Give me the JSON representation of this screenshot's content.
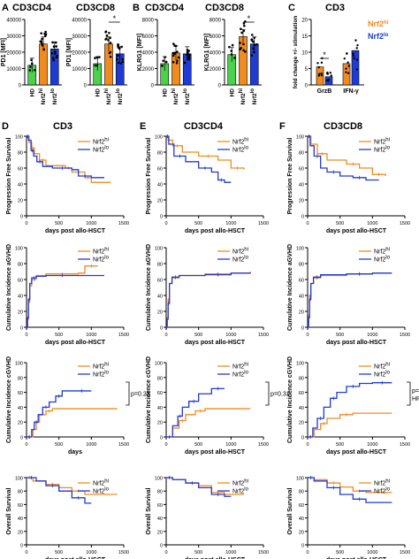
{
  "colors": {
    "hi": "#f28b1e",
    "lo": "#1f3bd6",
    "hd": "#4cd14c",
    "axis": "#000000"
  },
  "labels": {
    "hd": "HD",
    "hi": "Nrf2",
    "lo": "Nrf2",
    "sup_hi": "hi",
    "sup_lo": "lo",
    "star": "*"
  },
  "panels": {
    "A": {
      "letter": "A",
      "title": "CD3CD4",
      "title2": "CD3CD8"
    },
    "B": {
      "letter": "B",
      "title": "CD3CD4",
      "title2": "CD3CD8"
    },
    "C": {
      "letter": "C",
      "title": "CD3"
    },
    "D": {
      "letter": "D",
      "title": "CD3"
    },
    "E": {
      "letter": "E",
      "title": "CD3CD4"
    },
    "F": {
      "letter": "F",
      "title": "CD3CD8"
    }
  },
  "chart_data": [
    {
      "id": "A1",
      "type": "bar",
      "title": "CD3CD4",
      "ylabel": "PD1 [MFI]",
      "ylim": [
        0,
        40000
      ],
      "yticks": [
        "0",
        "10000",
        "20000",
        "30000",
        "40000"
      ],
      "categories": [
        "HD",
        "Nrf2hi",
        "Nrf2lo"
      ],
      "values": [
        12000,
        25000,
        22000
      ],
      "sig": false
    },
    {
      "id": "A2",
      "type": "bar",
      "title": "CD3CD8",
      "ylabel": "PD1 [MFI]",
      "ylim": [
        0,
        40000
      ],
      "yticks": [
        "0",
        "10000",
        "20000",
        "30000",
        "40000"
      ],
      "categories": [
        "HD",
        "Nrf2hi",
        "Nrf2lo"
      ],
      "values": [
        13000,
        25000,
        19000
      ],
      "sig": true
    },
    {
      "id": "B1",
      "type": "bar",
      "title": "CD3CD4",
      "ylabel": "KLRG1 [MFI]",
      "ylim": [
        0,
        8000
      ],
      "yticks": [
        "0",
        "2000",
        "4000",
        "6000",
        "8000"
      ],
      "categories": [
        "HD",
        "Nrf2hi",
        "Nrf2lo"
      ],
      "values": [
        2600,
        3900,
        3800
      ],
      "sig": false
    },
    {
      "id": "B2",
      "type": "bar",
      "title": "CD3CD8",
      "ylabel": "KLRG1 [MFI]",
      "ylim": [
        0,
        8000
      ],
      "yticks": [
        "0",
        "2000",
        "4000",
        "6000",
        "8000"
      ],
      "categories": [
        "HD",
        "Nrf2hi",
        "Nrf2lo"
      ],
      "values": [
        3700,
        5900,
        5000
      ],
      "sig": true
    },
    {
      "id": "C",
      "type": "bar",
      "title": "CD3",
      "ylabel": "fold change +/- stimulation",
      "ylim": [
        0,
        20
      ],
      "yticks": [
        "0",
        "5",
        "10",
        "15",
        "20"
      ],
      "categories": [
        "GrzB",
        "IFN-γ"
      ],
      "series": [
        {
          "name": "Nrf2hi",
          "values": [
            5.5,
            6.5
          ]
        },
        {
          "name": "Nrf2lo",
          "values": [
            2.5,
            10.5
          ]
        }
      ],
      "sig": true
    },
    {
      "id": "D1",
      "type": "line",
      "title": "CD3",
      "xlabel": "days post allo-HSCT",
      "ylabel": "Progression Free Survival",
      "xlim": [
        0,
        1500
      ],
      "ylim": [
        0,
        100
      ],
      "xticks": [
        "0",
        "500",
        "1000",
        "1500"
      ],
      "yticks": [
        "0",
        "20",
        "40",
        "60",
        "80",
        "100"
      ],
      "series": [
        {
          "name": "Nrf2hi",
          "x": [
            0,
            40,
            80,
            120,
            200,
            300,
            600,
            700,
            900,
            1000,
            1300
          ],
          "y": [
            100,
            92,
            85,
            78,
            70,
            63,
            60,
            55,
            48,
            42,
            42
          ]
        },
        {
          "name": "Nrf2lo",
          "x": [
            0,
            30,
            70,
            110,
            160,
            250,
            400,
            700,
            800,
            1000,
            1200
          ],
          "y": [
            100,
            95,
            82,
            75,
            68,
            62,
            60,
            58,
            50,
            48,
            48
          ]
        }
      ]
    },
    {
      "id": "D2",
      "type": "line",
      "title": "",
      "xlabel": "days post allo-HSCT",
      "ylabel": "Cumulative Incidence aGVHD",
      "xlim": [
        0,
        1500
      ],
      "ylim": [
        0,
        100
      ],
      "xticks": [
        "0",
        "500",
        "1000",
        "1500"
      ],
      "yticks": [
        "0",
        "20",
        "40",
        "60",
        "80",
        "100"
      ],
      "series": [
        {
          "name": "Nrf2hi",
          "x": [
            0,
            15,
            30,
            50,
            80,
            150,
            300,
            800,
            900,
            1100
          ],
          "y": [
            0,
            10,
            32,
            52,
            60,
            65,
            67,
            68,
            77,
            77
          ]
        },
        {
          "name": "Nrf2lo",
          "x": [
            0,
            15,
            30,
            50,
            80,
            150,
            300,
            800,
            1200
          ],
          "y": [
            0,
            12,
            35,
            55,
            62,
            64,
            65,
            65,
            65
          ]
        }
      ]
    },
    {
      "id": "D3",
      "type": "line",
      "title": "",
      "xlabel": "days",
      "ylabel": "Cumulative Incidence cGVHD",
      "xlim": [
        0,
        1500
      ],
      "ylim": [
        0,
        100
      ],
      "xticks": [
        "0",
        "500",
        "1000",
        "1500"
      ],
      "yticks": [
        "0",
        "20",
        "40",
        "60",
        "80",
        "100"
      ],
      "annotation": "p=0.23",
      "series": [
        {
          "name": "Nrf2hi",
          "x": [
            0,
            100,
            150,
            200,
            300,
            400,
            1400
          ],
          "y": [
            0,
            10,
            20,
            30,
            35,
            38,
            38
          ]
        },
        {
          "name": "Nrf2lo",
          "x": [
            0,
            80,
            120,
            180,
            250,
            350,
            450,
            550,
            700,
            1000
          ],
          "y": [
            0,
            10,
            20,
            30,
            40,
            47,
            55,
            62,
            62,
            62
          ]
        }
      ]
    },
    {
      "id": "D4",
      "type": "line",
      "title": "",
      "xlabel": "days post allo-HSCT",
      "ylabel": "Overall Survival",
      "xlim": [
        0,
        1500
      ],
      "ylim": [
        0,
        100
      ],
      "xticks": [
        "0",
        "500",
        "1000",
        "1500"
      ],
      "yticks": [
        "0",
        "20",
        "40",
        "60",
        "80",
        "100"
      ],
      "series": [
        {
          "name": "Nrf2hi",
          "x": [
            0,
            100,
            300,
            500,
            700,
            900,
            1400
          ],
          "y": [
            100,
            95,
            90,
            85,
            80,
            75,
            75
          ]
        },
        {
          "name": "Nrf2lo",
          "x": [
            0,
            150,
            300,
            500,
            700,
            900,
            1000
          ],
          "y": [
            100,
            95,
            88,
            80,
            70,
            62,
            62
          ]
        }
      ]
    },
    {
      "id": "E1",
      "type": "line",
      "title": "CD3CD4",
      "xlabel": "days post allo-HSCT",
      "ylabel": "Progression Free Survival",
      "xlim": [
        0,
        1500
      ],
      "ylim": [
        0,
        100
      ],
      "xticks": [
        "0",
        "500",
        "1000",
        "1500"
      ],
      "yticks": [
        "0",
        "20",
        "40",
        "60",
        "80",
        "100"
      ],
      "series": [
        {
          "name": "Nrf2hi",
          "x": [
            0,
            30,
            100,
            250,
            500,
            800,
            1000,
            1200
          ],
          "y": [
            100,
            95,
            88,
            80,
            75,
            70,
            60,
            58
          ]
        },
        {
          "name": "Nrf2lo",
          "x": [
            0,
            40,
            120,
            300,
            500,
            700,
            800,
            900,
            1000
          ],
          "y": [
            100,
            90,
            75,
            68,
            60,
            55,
            45,
            42,
            42
          ]
        }
      ]
    },
    {
      "id": "E2",
      "type": "line",
      "title": "",
      "xlabel": "days post allo-HSCT",
      "ylabel": "Cumulative Incidence aGVHD",
      "xlim": [
        0,
        1500
      ],
      "ylim": [
        0,
        100
      ],
      "xticks": [
        "0",
        "500",
        "1000",
        "1500"
      ],
      "yticks": [
        "0",
        "20",
        "40",
        "60",
        "80",
        "100"
      ],
      "series": [
        {
          "name": "Nrf2hi",
          "x": [
            0,
            15,
            30,
            50,
            90,
            200,
            600,
            1000,
            1300
          ],
          "y": [
            0,
            12,
            35,
            55,
            62,
            65,
            67,
            68,
            70
          ]
        },
        {
          "name": "Nrf2lo",
          "x": [
            0,
            15,
            30,
            50,
            90,
            200,
            600,
            1000,
            1300
          ],
          "y": [
            0,
            10,
            30,
            55,
            63,
            65,
            66,
            68,
            68
          ]
        }
      ]
    },
    {
      "id": "E3",
      "type": "line",
      "title": "",
      "xlabel": "days post allo-HSCT",
      "ylabel": "Cumulative Incidence cGVHD",
      "xlim": [
        0,
        1500
      ],
      "ylim": [
        0,
        100
      ],
      "xticks": [
        "0",
        "500",
        "1000",
        "1500"
      ],
      "yticks": [
        "0",
        "20",
        "40",
        "60",
        "80",
        "100"
      ],
      "annotation": "p=0.31",
      "series": [
        {
          "name": "Nrf2hi",
          "x": [
            0,
            100,
            200,
            300,
            450,
            600,
            1300
          ],
          "y": [
            0,
            12,
            22,
            30,
            35,
            38,
            38
          ]
        },
        {
          "name": "Nrf2lo",
          "x": [
            0,
            100,
            180,
            250,
            350,
            500,
            700,
            900
          ],
          "y": [
            0,
            15,
            28,
            40,
            48,
            58,
            65,
            65
          ]
        }
      ]
    },
    {
      "id": "E4",
      "type": "line",
      "title": "",
      "xlabel": "days post allo-HSCT",
      "ylabel": "Overall Survival",
      "xlim": [
        0,
        1500
      ],
      "ylim": [
        0,
        100
      ],
      "xticks": [
        "0",
        "500",
        "1000",
        "1500"
      ],
      "yticks": [
        "0",
        "20",
        "40",
        "60",
        "80",
        "100"
      ],
      "series": [
        {
          "name": "Nrf2hi",
          "x": [
            0,
            100,
            300,
            500,
            700,
            900,
            1200
          ],
          "y": [
            100,
            97,
            92,
            88,
            78,
            75,
            75
          ]
        },
        {
          "name": "Nrf2lo",
          "x": [
            0,
            100,
            300,
            500,
            700,
            900,
            1000
          ],
          "y": [
            100,
            97,
            92,
            85,
            75,
            72,
            72
          ]
        }
      ]
    },
    {
      "id": "F1",
      "type": "line",
      "title": "CD3CD8",
      "xlabel": "days post allo-HSCT",
      "ylabel": "Progression Free Survival",
      "xlim": [
        0,
        1500
      ],
      "ylim": [
        0,
        100
      ],
      "xticks": [
        "0",
        "500",
        "1000",
        "1500"
      ],
      "yticks": [
        "0",
        "20",
        "40",
        "60",
        "80",
        "100"
      ],
      "series": [
        {
          "name": "Nrf2hi",
          "x": [
            0,
            50,
            150,
            300,
            600,
            800,
            1000,
            1200
          ],
          "y": [
            100,
            90,
            78,
            70,
            65,
            60,
            52,
            50
          ]
        },
        {
          "name": "Nrf2lo",
          "x": [
            0,
            40,
            100,
            200,
            300,
            500,
            700,
            900,
            1100
          ],
          "y": [
            100,
            88,
            75,
            60,
            55,
            50,
            48,
            45,
            45
          ]
        }
      ]
    },
    {
      "id": "F2",
      "type": "line",
      "title": "",
      "xlabel": "days post allo-HSCT",
      "ylabel": "Cumulative Incidence aGVHD",
      "xlim": [
        0,
        1500
      ],
      "ylim": [
        0,
        100
      ],
      "xticks": [
        "0",
        "500",
        "1000",
        "1500"
      ],
      "yticks": [
        "0",
        "20",
        "40",
        "60",
        "80",
        "100"
      ],
      "series": [
        {
          "name": "Nrf2hi",
          "x": [
            0,
            15,
            30,
            50,
            90,
            200,
            600,
            1000,
            1300
          ],
          "y": [
            0,
            15,
            40,
            55,
            62,
            65,
            67,
            68,
            68
          ]
        },
        {
          "name": "Nrf2lo",
          "x": [
            0,
            15,
            30,
            50,
            90,
            200,
            600,
            1000,
            1300
          ],
          "y": [
            0,
            12,
            35,
            55,
            63,
            66,
            67,
            68,
            68
          ]
        }
      ]
    },
    {
      "id": "F3",
      "type": "line",
      "title": "",
      "xlabel": "days post allo-HSCT",
      "ylabel": "Cumulative Incidence cGVHD",
      "xlim": [
        0,
        1500
      ],
      "ylim": [
        0,
        100
      ],
      "xticks": [
        "0",
        "500",
        "1000",
        "1500"
      ],
      "yticks": [
        "0",
        "20",
        "40",
        "60",
        "80",
        "100"
      ],
      "annotation": "p=0.03",
      "annotation2": "HR=0.42",
      "series": [
        {
          "name": "Nrf2hi",
          "x": [
            0,
            100,
            200,
            300,
            500,
            700,
            1300
          ],
          "y": [
            0,
            10,
            18,
            25,
            30,
            32,
            32
          ]
        },
        {
          "name": "Nrf2lo",
          "x": [
            0,
            80,
            150,
            250,
            350,
            450,
            600,
            800,
            1000,
            1300
          ],
          "y": [
            0,
            12,
            25,
            40,
            52,
            60,
            68,
            72,
            73,
            73
          ]
        }
      ]
    },
    {
      "id": "F4",
      "type": "line",
      "title": "",
      "xlabel": "days post allo-HSCT",
      "ylabel": "Overall Survival",
      "xlim": [
        0,
        1500
      ],
      "ylim": [
        0,
        100
      ],
      "xticks": [
        "0",
        "500",
        "1000",
        "1500"
      ],
      "yticks": [
        "0",
        "20",
        "40",
        "60",
        "80",
        "100"
      ],
      "series": [
        {
          "name": "Nrf2hi",
          "x": [
            0,
            100,
            300,
            500,
            700,
            900,
            1300
          ],
          "y": [
            100,
            97,
            92,
            86,
            80,
            78,
            78
          ]
        },
        {
          "name": "Nrf2lo",
          "x": [
            0,
            100,
            300,
            500,
            700,
            900,
            1300
          ],
          "y": [
            100,
            95,
            85,
            75,
            68,
            63,
            63
          ]
        }
      ]
    }
  ]
}
